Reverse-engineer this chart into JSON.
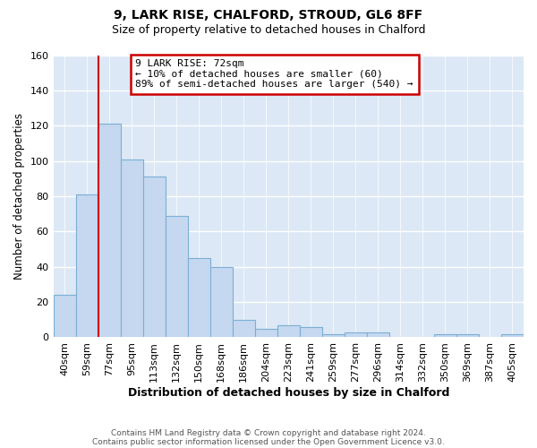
{
  "title": "9, LARK RISE, CHALFORD, STROUD, GL6 8FF",
  "subtitle": "Size of property relative to detached houses in Chalford",
  "xlabel": "Distribution of detached houses by size in Chalford",
  "ylabel": "Number of detached properties",
  "bar_color": "#c5d8f0",
  "bar_edge_color": "#7bafd4",
  "plot_bg_color": "#dce8f5",
  "fig_bg_color": "#ffffff",
  "grid_color": "#ffffff",
  "categories": [
    "40sqm",
    "59sqm",
    "77sqm",
    "95sqm",
    "113sqm",
    "132sqm",
    "150sqm",
    "168sqm",
    "186sqm",
    "204sqm",
    "223sqm",
    "241sqm",
    "259sqm",
    "277sqm",
    "296sqm",
    "314sqm",
    "332sqm",
    "350sqm",
    "369sqm",
    "387sqm",
    "405sqm"
  ],
  "values": [
    24,
    81,
    121,
    101,
    91,
    69,
    45,
    40,
    10,
    5,
    7,
    6,
    2,
    3,
    3,
    0,
    0,
    2,
    2,
    0,
    2
  ],
  "ylim": [
    0,
    160
  ],
  "yticks": [
    0,
    20,
    40,
    60,
    80,
    100,
    120,
    140,
    160
  ],
  "vline_index": 2,
  "vline_color": "#cc0000",
  "annotation_title": "9 LARK RISE: 72sqm",
  "annotation_line1": "← 10% of detached houses are smaller (60)",
  "annotation_line2": "89% of semi-detached houses are larger (540) →",
  "annotation_box_color": "#ffffff",
  "annotation_box_edge": "#cc0000",
  "footer_line1": "Contains HM Land Registry data © Crown copyright and database right 2024.",
  "footer_line2": "Contains public sector information licensed under the Open Government Licence v3.0."
}
